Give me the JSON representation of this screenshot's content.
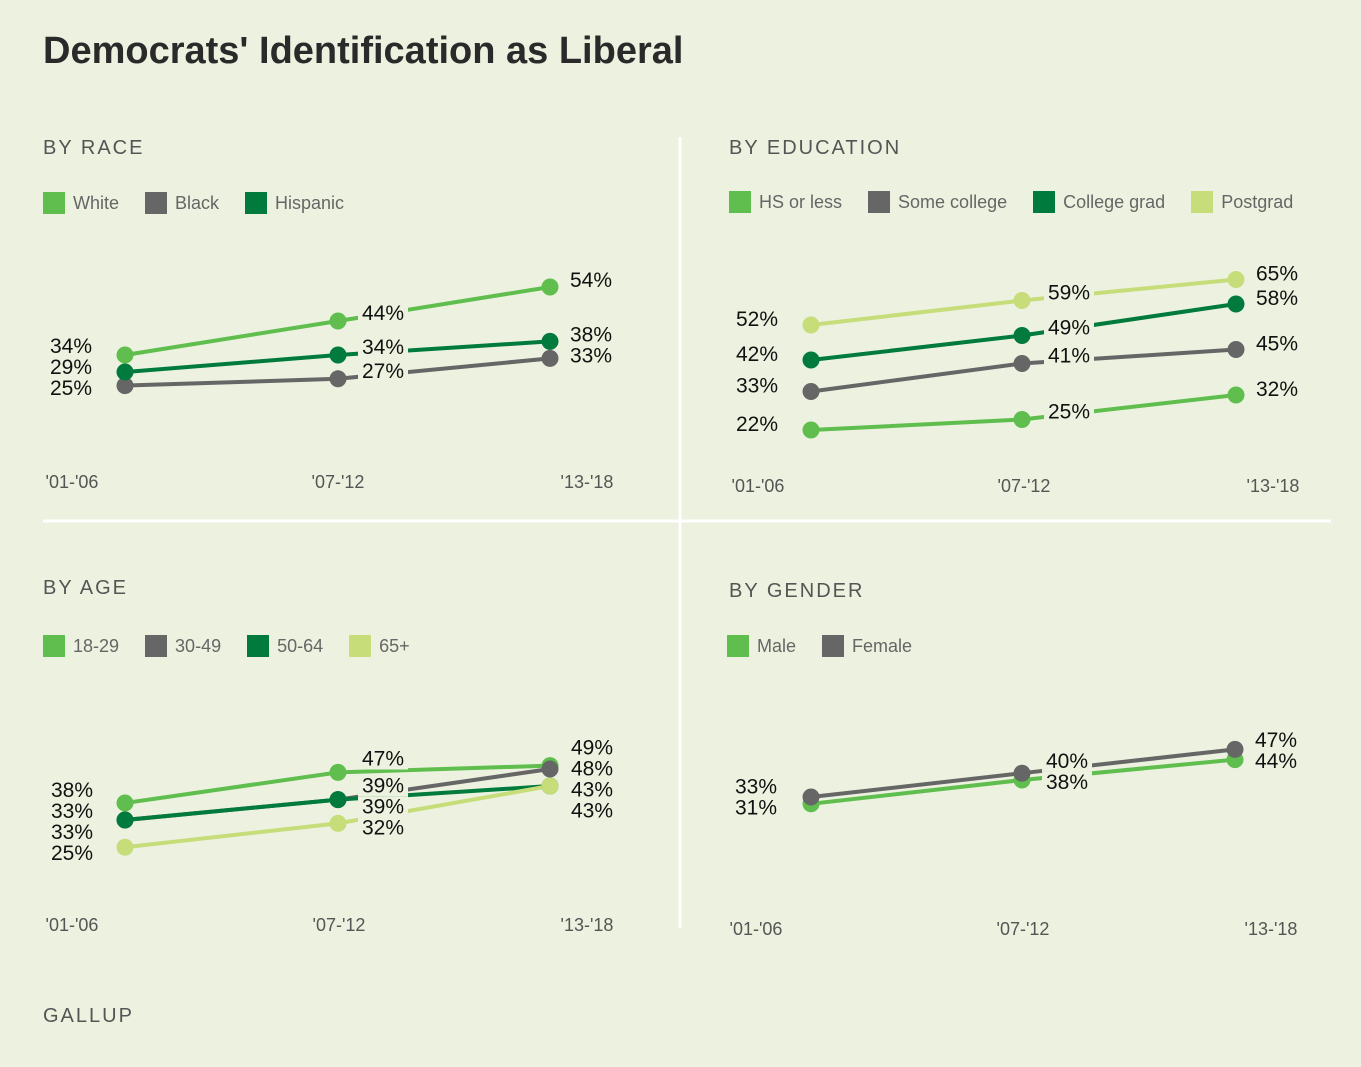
{
  "title": "Democrats' Identification as Liberal",
  "footer": "GALLUP",
  "colors": {
    "light_green": "#5fbe4e",
    "gray": "#666666",
    "dark_green": "#007a3d",
    "pale_green": "#c6dd7a"
  },
  "chart_data": [
    {
      "type": "line",
      "title": "BY RACE",
      "categories": [
        "'01-'06",
        "'07-'12",
        "'13-'18"
      ],
      "series": [
        {
          "name": "White",
          "color": "#5fbe4e",
          "values": [
            34,
            44,
            54
          ]
        },
        {
          "name": "Black",
          "color": "#666666",
          "values": [
            25,
            27,
            33
          ]
        },
        {
          "name": "Hispanic",
          "color": "#007a3d",
          "values": [
            29,
            34,
            38
          ]
        }
      ]
    },
    {
      "type": "line",
      "title": "BY EDUCATION",
      "categories": [
        "'01-'06",
        "'07-'12",
        "'13-'18"
      ],
      "series": [
        {
          "name": "HS or less",
          "color": "#5fbe4e",
          "values": [
            22,
            25,
            32
          ]
        },
        {
          "name": "Some college",
          "color": "#666666",
          "values": [
            33,
            41,
            45
          ]
        },
        {
          "name": "College grad",
          "color": "#007a3d",
          "values": [
            42,
            49,
            58
          ]
        },
        {
          "name": "Postgrad",
          "color": "#c6dd7a",
          "values": [
            52,
            59,
            65
          ]
        }
      ]
    },
    {
      "type": "line",
      "title": "BY AGE",
      "categories": [
        "'01-'06",
        "'07-'12",
        "'13-'18"
      ],
      "series": [
        {
          "name": "18-29",
          "color": "#5fbe4e",
          "values": [
            38,
            47,
            49
          ]
        },
        {
          "name": "30-49",
          "color": "#666666",
          "values": [
            33,
            39,
            48
          ]
        },
        {
          "name": "50-64",
          "color": "#007a3d",
          "values": [
            33,
            39,
            43
          ]
        },
        {
          "name": "65+",
          "color": "#c6dd7a",
          "values": [
            25,
            32,
            43
          ]
        }
      ]
    },
    {
      "type": "line",
      "title": "BY GENDER",
      "categories": [
        "'01-'06",
        "'07-'12",
        "'13-'18"
      ],
      "series": [
        {
          "name": "Male",
          "color": "#5fbe4e",
          "values": [
            31,
            38,
            44
          ]
        },
        {
          "name": "Female",
          "color": "#666666",
          "values": [
            33,
            40,
            47
          ]
        }
      ]
    }
  ]
}
